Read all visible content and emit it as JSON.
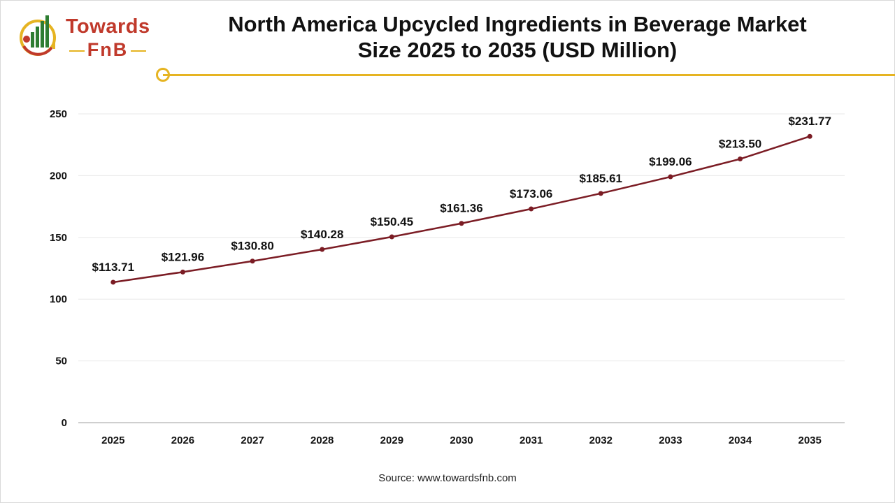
{
  "brand": {
    "name_line_1": "Towards",
    "name_line_2": "FnB",
    "colors": {
      "red": "#c0392b",
      "green": "#2e7d32",
      "gold": "#e6b422"
    }
  },
  "title": {
    "line_1": "North America Upcycled Ingredients in Beverage Market",
    "line_2": "Size 2025 to 2035 (USD Million)"
  },
  "source": "Source: www.towardsfnb.com",
  "chart_data": {
    "type": "line",
    "title": "North America Upcycled Ingredients in Beverage Market Size 2025 to 2035 (USD Million)",
    "xlabel": "",
    "ylabel": "",
    "categories": [
      "2025",
      "2026",
      "2027",
      "2028",
      "2029",
      "2030",
      "2031",
      "2032",
      "2033",
      "2034",
      "2035"
    ],
    "series": [
      {
        "values": [
          113.71,
          121.96,
          130.8,
          140.28,
          150.45,
          161.36,
          173.06,
          185.61,
          199.06,
          213.5,
          231.77
        ],
        "labels": [
          "$113.71",
          "$121.96",
          "$130.80",
          "$140.28",
          "$150.45",
          "$161.36",
          "$173.06",
          "$185.61",
          "$199.06",
          "$213.50",
          "$231.77"
        ],
        "color": "#7b1c24"
      }
    ],
    "ylim": [
      0,
      250
    ],
    "yticks": [
      0,
      50,
      100,
      150,
      200,
      250
    ],
    "grid": true,
    "legend": "none"
  }
}
